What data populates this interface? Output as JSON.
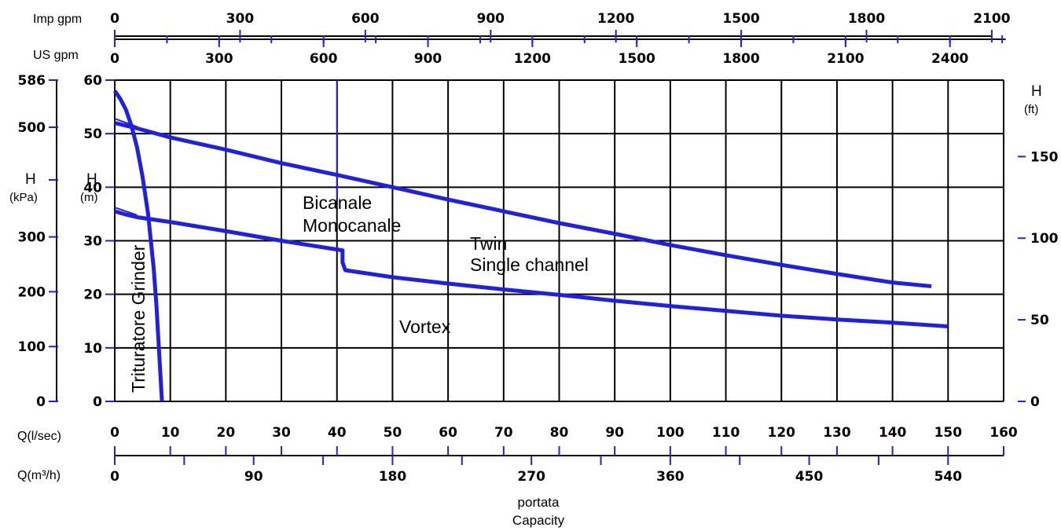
{
  "chart_data": {
    "type": "line",
    "x_unit": "l/sec",
    "y_unit": "m",
    "xlim": [
      0,
      160
    ],
    "ylim": [
      0,
      60
    ],
    "x_ticks": [
      "0",
      "10",
      "20",
      "30",
      "40",
      "50",
      "60",
      "70",
      "80",
      "90",
      "100",
      "110",
      "120",
      "130",
      "140",
      "150",
      "160"
    ],
    "y_ticks": [
      "0",
      "10",
      "20",
      "30",
      "40",
      "50",
      "60"
    ],
    "axes": {
      "imp_gpm": {
        "label": "Imp gpm",
        "ticks": [
          "0",
          "300",
          "600",
          "900",
          "1200",
          "1500",
          "1800",
          "2100"
        ]
      },
      "us_gpm": {
        "label": "US gpm",
        "ticks": [
          "0",
          "300",
          "600",
          "900",
          "1200",
          "1500",
          "1800",
          "2100",
          "2400"
        ]
      },
      "kpa": {
        "label_main": "H",
        "label_unit": "(kPa)",
        "ticks": [
          "586",
          "500",
          "300",
          "200",
          "100",
          "0"
        ]
      },
      "m": {
        "label_main": "H",
        "label_unit": "(m)"
      },
      "ft": {
        "label_main": "H",
        "label_unit": "(ft)",
        "ticks": [
          "150",
          "100",
          "50",
          "0"
        ]
      },
      "ls": {
        "label": "Q(l/sec)"
      },
      "m3h": {
        "label": "Q(m³/h)",
        "ticks": [
          "0",
          "90",
          "180",
          "270",
          "360",
          "450",
          "540"
        ]
      },
      "capacity": {
        "line1": "portata",
        "line2": "Capacity"
      }
    },
    "series": [
      {
        "name": "Trituratore Grinder",
        "x": [
          0,
          1,
          2,
          3,
          4,
          5,
          6,
          7,
          7.5,
          8,
          8.5
        ],
        "y": [
          58,
          56.5,
          54.5,
          51.5,
          47.5,
          42,
          35,
          25,
          18,
          9,
          0
        ]
      },
      {
        "name": "Bicanale Monocanale Twin Single channel",
        "x": [
          0,
          2,
          4,
          10,
          20,
          30,
          40,
          50,
          60,
          70,
          80,
          90,
          100,
          110,
          120,
          130,
          140,
          147
        ],
        "y": [
          52,
          51.5,
          51,
          49.3,
          47,
          44.5,
          42.3,
          40,
          37.7,
          35.5,
          33.3,
          31.3,
          29.2,
          27.3,
          25.5,
          23.8,
          22.2,
          21.5
        ]
      },
      {
        "name": "Vortex",
        "x": [
          0,
          2,
          4,
          10,
          20,
          30,
          41,
          41,
          41.5,
          50,
          60,
          70,
          80,
          90,
          100,
          110,
          120,
          130,
          140,
          150
        ],
        "y": [
          35.5,
          34.9,
          34.4,
          33.5,
          31.8,
          30,
          28.2,
          26,
          24.5,
          23.2,
          22,
          20.9,
          19.9,
          18.8,
          17.8,
          16.9,
          16,
          15.3,
          14.7,
          14
        ]
      }
    ],
    "curve_labels": {
      "grinder": "Trituratore Grinder",
      "bicanale": "Bicanale",
      "monocanale": "Monocanale",
      "twin": "Twin",
      "single": "Single channel",
      "vortex": "Vortex"
    },
    "grid": true,
    "line_color": "#1f1fe6"
  }
}
